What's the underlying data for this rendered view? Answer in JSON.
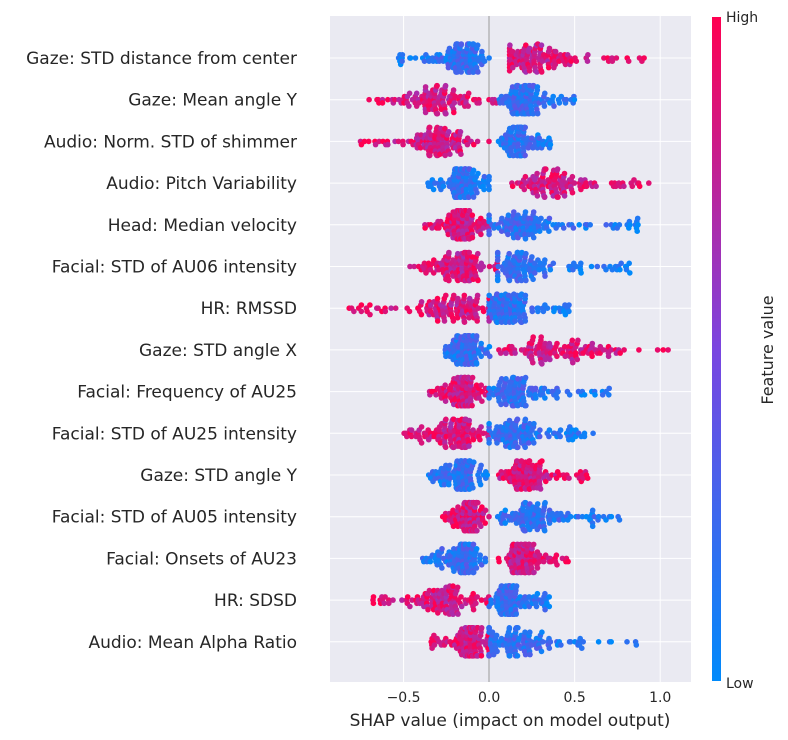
{
  "chart_data": {
    "type": "scatter",
    "subtype": "shap-beeswarm",
    "title": "",
    "xlabel": "SHAP value (impact on model output)",
    "ylabel": "",
    "xlim": [
      -0.93,
      1.18
    ],
    "xticks": [
      -0.5,
      0.0,
      0.5,
      1.0
    ],
    "xtick_labels": [
      "−0.5",
      "0.0",
      "0.5",
      "1.0"
    ],
    "grid": true,
    "colors": {
      "low": "#008afb",
      "mid": "#7a45e0",
      "high": "#ff0051",
      "background": "#eaeaf2",
      "zero_line": "#999999"
    },
    "colorbar": {
      "title": "Feature value",
      "high_label": "High",
      "low_label": "Low"
    },
    "features": [
      {
        "name": "Gaze: STD distance from center",
        "low_range": [
          -0.53,
          0.0
        ],
        "high_range": [
          0.12,
          0.92
        ],
        "high_side": "right",
        "low_core": -0.15,
        "high_core": 0.25
      },
      {
        "name": "Gaze: Mean angle Y",
        "low_range": [
          0.05,
          0.5
        ],
        "high_range": [
          -0.73,
          0.05
        ],
        "high_side": "left",
        "low_core": 0.2,
        "high_core": -0.3
      },
      {
        "name": "Audio: Norm. STD of shimmer",
        "low_range": [
          0.05,
          0.36
        ],
        "high_range": [
          -0.77,
          0.0
        ],
        "high_side": "left",
        "low_core": 0.18,
        "high_core": -0.3
      },
      {
        "name": "Audio: Pitch Variability",
        "low_range": [
          -0.37,
          0.0
        ],
        "high_range": [
          0.13,
          0.95
        ],
        "high_side": "right",
        "low_core": -0.15,
        "high_core": 0.35
      },
      {
        "name": "Head: Median velocity",
        "low_range": [
          0.0,
          0.91
        ],
        "high_range": [
          -0.38,
          0.0
        ],
        "high_side": "left",
        "low_core": 0.2,
        "high_core": -0.15
      },
      {
        "name": "Facial: STD of AU06 intensity",
        "low_range": [
          0.05,
          0.84
        ],
        "high_range": [
          -0.47,
          0.05
        ],
        "high_side": "left",
        "low_core": 0.15,
        "high_core": -0.15
      },
      {
        "name": "HR: RMSSD",
        "low_range": [
          0.0,
          0.47
        ],
        "high_range": [
          -0.84,
          0.0
        ],
        "high_side": "left",
        "low_core": 0.1,
        "high_core": -0.2
      },
      {
        "name": "Gaze: STD angle X",
        "low_range": [
          -0.28,
          0.02
        ],
        "high_range": [
          0.05,
          1.07
        ],
        "high_side": "right",
        "low_core": -0.13,
        "high_core": 0.4
      },
      {
        "name": "Facial: Frequency of AU25",
        "low_range": [
          0.0,
          0.71
        ],
        "high_range": [
          -0.36,
          0.0
        ],
        "high_side": "left",
        "low_core": 0.15,
        "high_core": -0.15
      },
      {
        "name": "Facial: STD of AU25 intensity",
        "low_range": [
          0.0,
          0.61
        ],
        "high_range": [
          -0.5,
          0.0
        ],
        "high_side": "left",
        "low_core": 0.15,
        "high_core": -0.2
      },
      {
        "name": "Gaze: STD angle Y",
        "low_range": [
          -0.36,
          0.0
        ],
        "high_range": [
          0.05,
          0.58
        ],
        "high_side": "right",
        "low_core": -0.15,
        "high_core": 0.2
      },
      {
        "name": "Facial: STD of AU05 intensity",
        "low_range": [
          0.05,
          0.77
        ],
        "high_range": [
          -0.28,
          0.0
        ],
        "high_side": "left",
        "low_core": 0.25,
        "high_core": -0.1
      },
      {
        "name": "Facial: Onsets of AU23",
        "low_range": [
          -0.4,
          0.0
        ],
        "high_range": [
          0.05,
          0.47
        ],
        "high_side": "right",
        "low_core": -0.15,
        "high_core": 0.2
      },
      {
        "name": "HR: SDSD",
        "low_range": [
          0.0,
          0.37
        ],
        "high_range": [
          -0.68,
          0.0
        ],
        "high_side": "left",
        "low_core": 0.12,
        "high_core": -0.25
      },
      {
        "name": "Audio: Mean Alpha Ratio",
        "low_range": [
          0.0,
          0.87
        ],
        "high_range": [
          -0.35,
          0.0
        ],
        "high_side": "left",
        "low_core": 0.15,
        "high_core": -0.1
      }
    ]
  }
}
